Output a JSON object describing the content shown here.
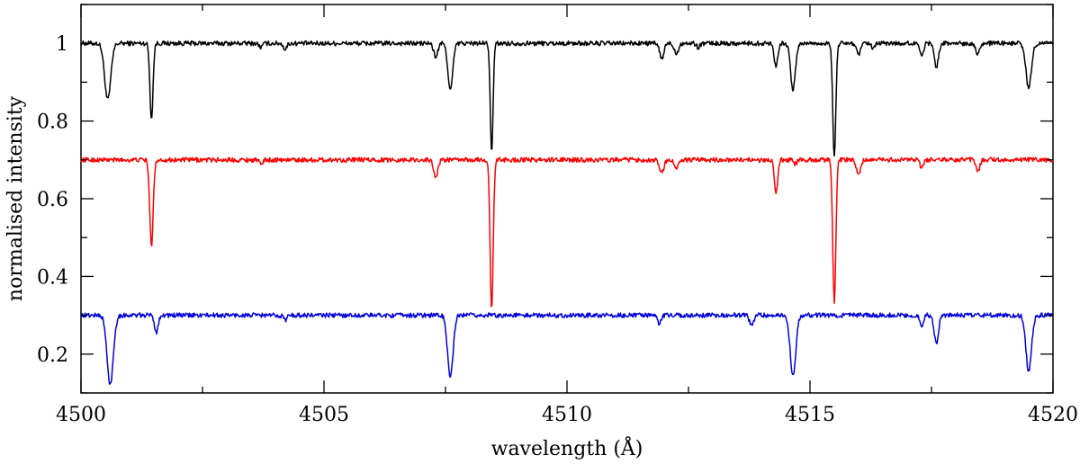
{
  "chart_data": {
    "type": "line",
    "title": "",
    "xlabel": "wavelength (Å)",
    "ylabel": "normalised intensity",
    "xlim": [
      4500,
      4520
    ],
    "ylim": [
      0.1,
      1.1
    ],
    "x_ticks": [
      4500,
      4505,
      4510,
      4515,
      4520
    ],
    "x_tick_labels": [
      "4500",
      "4505",
      "4510",
      "4515",
      "4520"
    ],
    "x_minor_step": 2.5,
    "y_ticks": [
      0.2,
      0.4,
      0.6,
      0.8,
      1.0
    ],
    "y_tick_labels": [
      "0.2",
      "0.4",
      "0.6",
      "0.8",
      "1"
    ],
    "y_minor_step": 0.1,
    "grid": false,
    "legend": "none",
    "series": [
      {
        "color": "#000000",
        "continuum": 1.0,
        "lines": [
          {
            "x": 4500.55,
            "depth": 0.145,
            "width": 0.09
          },
          {
            "x": 4501.45,
            "depth": 0.195,
            "width": 0.045
          },
          {
            "x": 4503.7,
            "depth": 0.01,
            "width": 0.05
          },
          {
            "x": 4504.2,
            "depth": 0.015,
            "width": 0.05
          },
          {
            "x": 4507.3,
            "depth": 0.035,
            "width": 0.06
          },
          {
            "x": 4507.6,
            "depth": 0.12,
            "width": 0.07
          },
          {
            "x": 4508.45,
            "depth": 0.285,
            "width": 0.04
          },
          {
            "x": 4511.95,
            "depth": 0.04,
            "width": 0.06
          },
          {
            "x": 4512.25,
            "depth": 0.025,
            "width": 0.06
          },
          {
            "x": 4512.7,
            "depth": 0.01,
            "width": 0.05
          },
          {
            "x": 4514.3,
            "depth": 0.06,
            "width": 0.05
          },
          {
            "x": 4514.65,
            "depth": 0.12,
            "width": 0.07
          },
          {
            "x": 4515.5,
            "depth": 0.29,
            "width": 0.045
          },
          {
            "x": 4516.0,
            "depth": 0.03,
            "width": 0.06
          },
          {
            "x": 4516.3,
            "depth": 0.015,
            "width": 0.05
          },
          {
            "x": 4517.3,
            "depth": 0.03,
            "width": 0.05
          },
          {
            "x": 4517.6,
            "depth": 0.06,
            "width": 0.06
          },
          {
            "x": 4518.45,
            "depth": 0.025,
            "width": 0.06
          },
          {
            "x": 4519.5,
            "depth": 0.115,
            "width": 0.08
          }
        ]
      },
      {
        "color": "#ff0000",
        "continuum": 0.7,
        "lines": [
          {
            "x": 4501.45,
            "depth": 0.22,
            "width": 0.05
          },
          {
            "x": 4503.7,
            "depth": 0.01,
            "width": 0.05
          },
          {
            "x": 4507.3,
            "depth": 0.045,
            "width": 0.06
          },
          {
            "x": 4508.45,
            "depth": 0.385,
            "width": 0.045
          },
          {
            "x": 4511.95,
            "depth": 0.035,
            "width": 0.06
          },
          {
            "x": 4512.25,
            "depth": 0.025,
            "width": 0.05
          },
          {
            "x": 4514.3,
            "depth": 0.085,
            "width": 0.05
          },
          {
            "x": 4514.7,
            "depth": 0.01,
            "width": 0.05
          },
          {
            "x": 4515.5,
            "depth": 0.365,
            "width": 0.045
          },
          {
            "x": 4516.0,
            "depth": 0.04,
            "width": 0.06
          },
          {
            "x": 4517.3,
            "depth": 0.02,
            "width": 0.05
          },
          {
            "x": 4518.45,
            "depth": 0.03,
            "width": 0.06
          }
        ]
      },
      {
        "color": "#0000dd",
        "continuum": 0.3,
        "lines": [
          {
            "x": 4500.6,
            "depth": 0.18,
            "width": 0.09
          },
          {
            "x": 4501.55,
            "depth": 0.045,
            "width": 0.05
          },
          {
            "x": 4504.2,
            "depth": 0.012,
            "width": 0.05
          },
          {
            "x": 4507.6,
            "depth": 0.16,
            "width": 0.08
          },
          {
            "x": 4511.9,
            "depth": 0.02,
            "width": 0.06
          },
          {
            "x": 4513.8,
            "depth": 0.025,
            "width": 0.06
          },
          {
            "x": 4514.65,
            "depth": 0.155,
            "width": 0.08
          },
          {
            "x": 4517.3,
            "depth": 0.03,
            "width": 0.05
          },
          {
            "x": 4517.6,
            "depth": 0.075,
            "width": 0.06
          },
          {
            "x": 4519.5,
            "depth": 0.145,
            "width": 0.08
          }
        ]
      }
    ]
  }
}
